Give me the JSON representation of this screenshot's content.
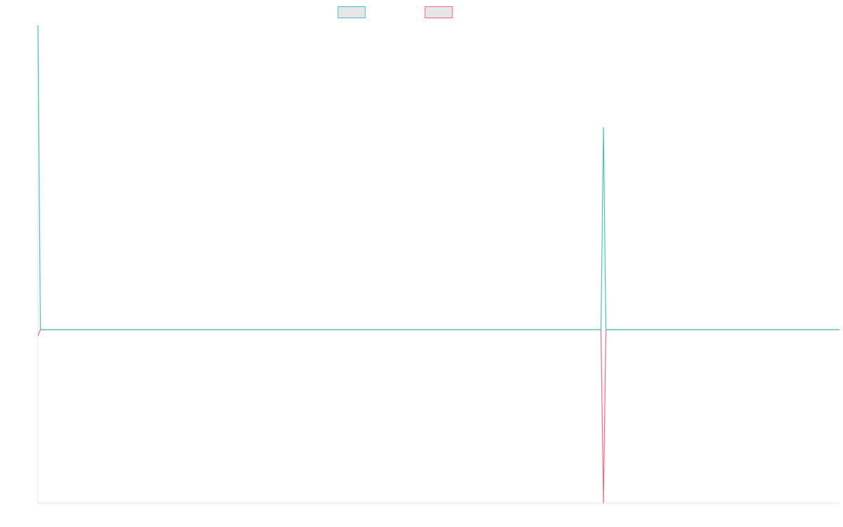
{
  "chart_data": {
    "type": "line",
    "x": [
      0,
      1,
      229,
      230,
      231,
      326
    ],
    "xlim": [
      0,
      326
    ],
    "ylim": [
      -0.57,
      1
    ],
    "series": [
      {
        "color": "#4bc0c0",
        "values": [
          1,
          0,
          0,
          0.665,
          0,
          0
        ]
      },
      {
        "color": "#ff6384",
        "values": [
          -0.02,
          0,
          0,
          -0.57,
          0,
          0
        ]
      }
    ]
  }
}
